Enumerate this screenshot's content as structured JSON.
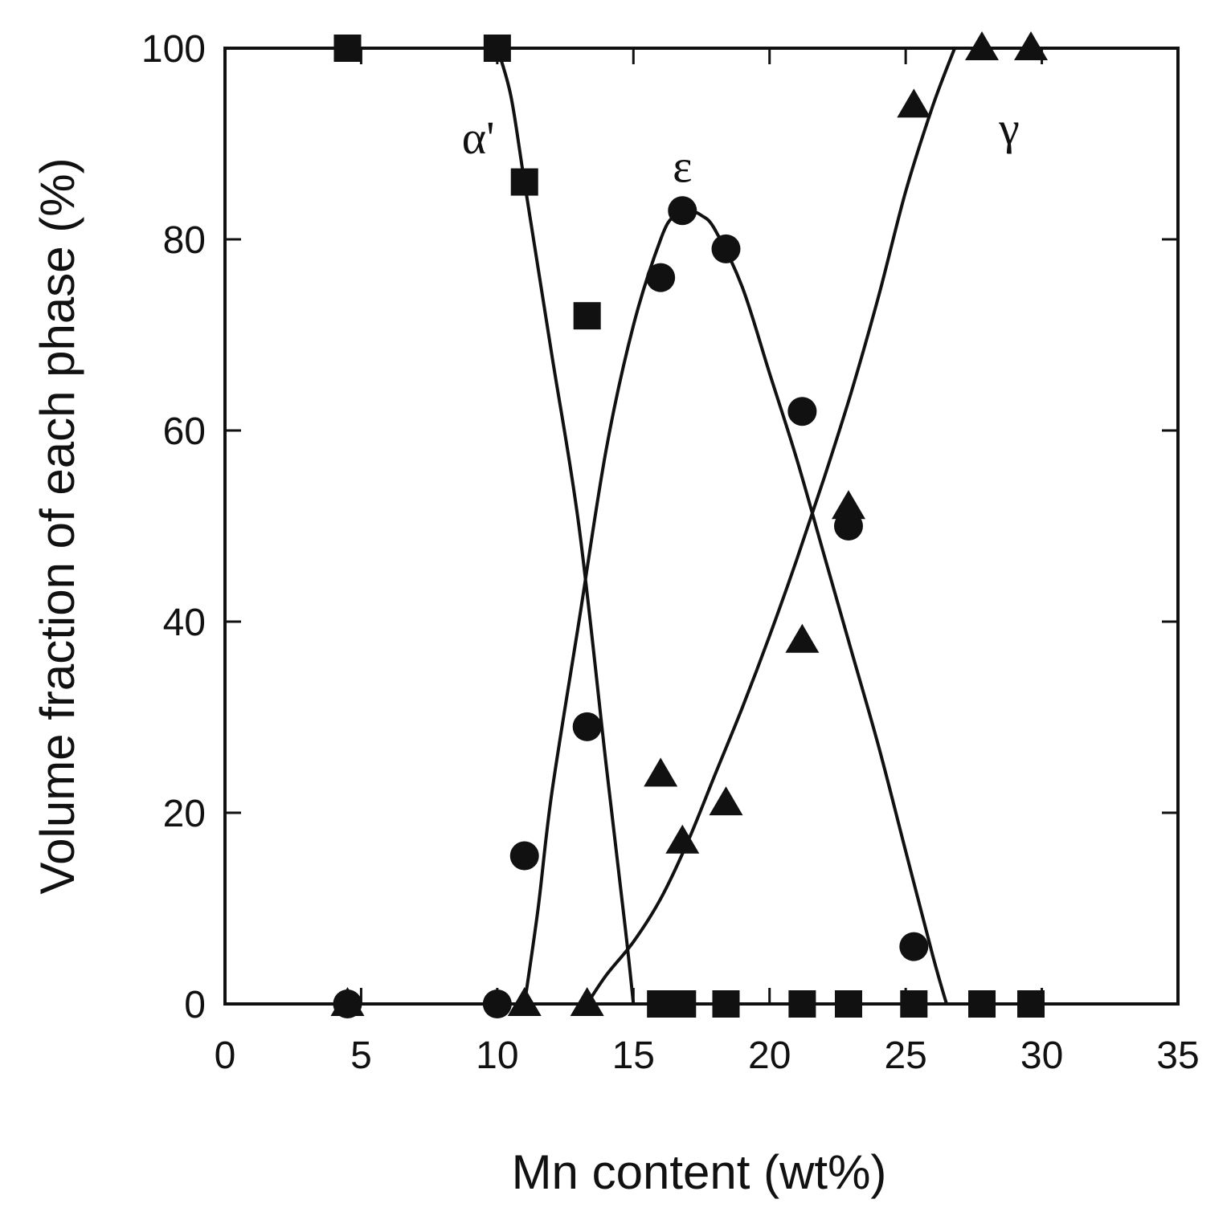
{
  "chart_data": {
    "type": "scatter",
    "title": "",
    "xlabel": "Mn content (wt%)",
    "ylabel": "Volume fraction of each phase (%)",
    "xlim": [
      0,
      35
    ],
    "ylim": [
      0,
      100
    ],
    "xticks": [
      0,
      5,
      10,
      15,
      20,
      25,
      30,
      35
    ],
    "yticks": [
      0,
      20,
      40,
      60,
      80,
      100
    ],
    "grid": false,
    "legend": "none",
    "series": [
      {
        "label": "α'",
        "marker": "square",
        "points": [
          [
            4.5,
            100
          ],
          [
            10,
            100
          ],
          [
            11,
            86
          ],
          [
            13.3,
            72
          ],
          [
            16,
            0
          ],
          [
            16.8,
            0
          ],
          [
            18.4,
            0
          ],
          [
            21.2,
            0
          ],
          [
            22.9,
            0
          ],
          [
            25.3,
            0
          ],
          [
            27.8,
            0
          ],
          [
            29.6,
            0
          ]
        ],
        "curve": [
          [
            10,
            100
          ],
          [
            10.5,
            95
          ],
          [
            11,
            86
          ],
          [
            12,
            68
          ],
          [
            13,
            50
          ],
          [
            14,
            25
          ],
          [
            14.7,
            8
          ],
          [
            15,
            0
          ]
        ]
      },
      {
        "label": "ε",
        "marker": "circle",
        "points": [
          [
            4.5,
            0
          ],
          [
            10,
            0
          ],
          [
            11,
            15.5
          ],
          [
            13.3,
            29
          ],
          [
            16,
            76
          ],
          [
            16.8,
            83
          ],
          [
            18.4,
            79
          ],
          [
            21.2,
            62
          ],
          [
            22.9,
            50
          ],
          [
            25.3,
            6
          ]
        ],
        "curve": [
          [
            11,
            0
          ],
          [
            11.5,
            10
          ],
          [
            12,
            22
          ],
          [
            13,
            40
          ],
          [
            14,
            58
          ],
          [
            15,
            71
          ],
          [
            16,
            80
          ],
          [
            16.5,
            82.5
          ],
          [
            17,
            83
          ],
          [
            17.5,
            82.5
          ],
          [
            18,
            81
          ],
          [
            19,
            75
          ],
          [
            20,
            66
          ],
          [
            21,
            57
          ],
          [
            22,
            47
          ],
          [
            23,
            37
          ],
          [
            24,
            27
          ],
          [
            25,
            16
          ],
          [
            26,
            5
          ],
          [
            26.5,
            0
          ]
        ]
      },
      {
        "label": "γ",
        "marker": "triangle",
        "points": [
          [
            4.5,
            0
          ],
          [
            11,
            0
          ],
          [
            13.3,
            0
          ],
          [
            16,
            24
          ],
          [
            16.8,
            17
          ],
          [
            18.4,
            21
          ],
          [
            21.2,
            38
          ],
          [
            22.9,
            52
          ],
          [
            25.3,
            94
          ],
          [
            27.8,
            100
          ],
          [
            29.6,
            100
          ]
        ],
        "curve": [
          [
            13.3,
            0
          ],
          [
            14,
            3
          ],
          [
            15,
            6.5
          ],
          [
            16,
            11
          ],
          [
            17,
            17
          ],
          [
            18,
            24
          ],
          [
            19,
            31
          ],
          [
            20,
            38.5
          ],
          [
            21,
            46.5
          ],
          [
            22,
            55
          ],
          [
            23,
            64
          ],
          [
            24,
            74
          ],
          [
            25,
            85
          ],
          [
            26,
            94
          ],
          [
            26.8,
            100
          ]
        ]
      }
    ],
    "annotations": [
      {
        "text": "α'",
        "x": 9.3,
        "y": 89
      },
      {
        "text": "ε",
        "x": 16.8,
        "y": 86
      },
      {
        "text": "γ",
        "x": 28.8,
        "y": 90
      }
    ]
  }
}
